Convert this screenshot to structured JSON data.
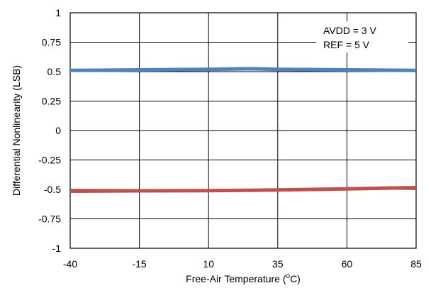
{
  "chart_data": {
    "type": "line",
    "xlabel": "Free-Air Temperature (",
    "xlabel_sup": "o",
    "xlabel_unit": "C)",
    "ylabel": "Differential Nonlinearity (LSB)",
    "xlim": [
      -40,
      85
    ],
    "ylim": [
      -1,
      1
    ],
    "x_ticks": [
      "-40",
      "-15",
      "10",
      "35",
      "60",
      "85"
    ],
    "y_ticks": [
      "1",
      "0.75",
      "0.5",
      "0.25",
      "0",
      "-0.25",
      "-0.5",
      "-0.75",
      "-1"
    ],
    "grid": true,
    "annotations": [
      "AVDD = 3 V",
      "REF = 5 V"
    ],
    "series": [
      {
        "color": "#4f81bd",
        "x": [
          -40,
          -15,
          10,
          25,
          35,
          60,
          85
        ],
        "y": [
          0.51,
          0.515,
          0.52,
          0.525,
          0.52,
          0.515,
          0.51
        ]
      },
      {
        "color": "#c0504d",
        "x": [
          -40,
          -15,
          10,
          25,
          35,
          60,
          85
        ],
        "y": [
          -0.515,
          -0.512,
          -0.51,
          -0.508,
          -0.505,
          -0.495,
          -0.485
        ]
      }
    ]
  }
}
